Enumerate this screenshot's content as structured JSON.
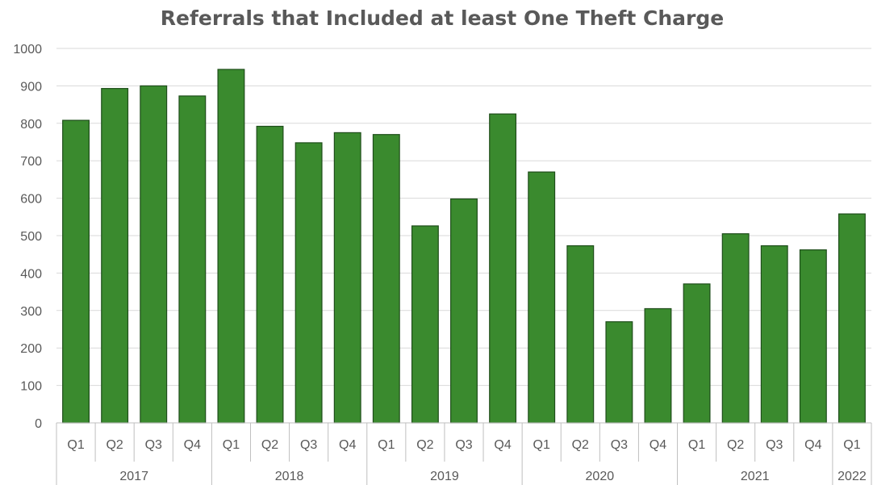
{
  "chart_data": {
    "type": "bar",
    "title": "Referrals that Included at least One Theft Charge",
    "xlabel": "",
    "ylabel": "",
    "ylim": [
      0,
      1000
    ],
    "yticks": [
      "0",
      "100",
      "200",
      "300",
      "400",
      "500",
      "600",
      "700",
      "800",
      "900",
      "1000"
    ],
    "grid": true,
    "legend": "none",
    "bar_color": "#3a8a2e",
    "groups": [
      {
        "label": "2017",
        "count": 4
      },
      {
        "label": "2018",
        "count": 4
      },
      {
        "label": "2019",
        "count": 4
      },
      {
        "label": "2020",
        "count": 4
      },
      {
        "label": "2021",
        "count": 4
      },
      {
        "label": "2022",
        "count": 1
      }
    ],
    "categories": [
      "Q1",
      "Q2",
      "Q3",
      "Q4",
      "Q1",
      "Q2",
      "Q3",
      "Q4",
      "Q1",
      "Q2",
      "Q3",
      "Q4",
      "Q1",
      "Q2",
      "Q3",
      "Q4",
      "Q1",
      "Q2",
      "Q3",
      "Q4",
      "Q1"
    ],
    "values": [
      808,
      893,
      900,
      873,
      944,
      792,
      748,
      775,
      770,
      526,
      598,
      825,
      670,
      473,
      270,
      305,
      371,
      505,
      473,
      462,
      558
    ]
  }
}
